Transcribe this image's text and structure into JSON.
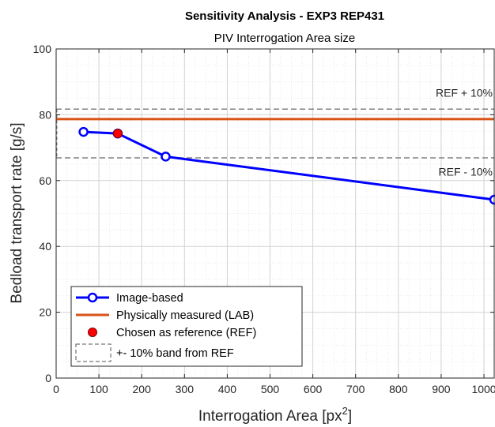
{
  "chart_data": {
    "type": "line",
    "title": "Sensitivity Analysis - EXP3 REP431",
    "subtitle": "PIV Interrogation Area size",
    "xlabel": "Interrogation Area [px",
    "xlabel_sup": "2",
    "xlabel_end": "]",
    "ylabel": "Bedload transport rate [g/s]",
    "xlim": [
      0,
      1024
    ],
    "ylim": [
      0,
      100
    ],
    "xticks": [
      0,
      100,
      200,
      300,
      400,
      500,
      600,
      700,
      800,
      900,
      1000
    ],
    "yticks": [
      0,
      20,
      40,
      60,
      80,
      100
    ],
    "grid": true,
    "legend_position": "bottom-left",
    "series": [
      {
        "name": "Image-based",
        "color": "#0000ff",
        "marker": "open-circle",
        "x": [
          64,
          144,
          256,
          1024
        ],
        "y": [
          74.8,
          74.3,
          67.3,
          54.2
        ]
      }
    ],
    "reference_lines": [
      {
        "name": "Physically measured (LAB)",
        "y": 78.7,
        "color": "#d95319",
        "style": "solid"
      },
      {
        "name": "+- 10% band from REF",
        "y_values": [
          81.7,
          66.9
        ],
        "color": "#808080",
        "style": "dashed"
      }
    ],
    "reference_point": {
      "name": "Chosen as reference (REF)",
      "x": 144,
      "y": 74.3,
      "color": "#ff0000"
    },
    "annotations": [
      {
        "text": "REF + 10%",
        "x": 1000,
        "y": 85.5
      },
      {
        "text": "REF - 10%",
        "x": 1000,
        "y": 61.5
      }
    ],
    "legend": [
      {
        "label": "Image-based",
        "kind": "line-marker"
      },
      {
        "label": "Physically measured (LAB)",
        "kind": "line"
      },
      {
        "label": "Chosen as reference (REF)",
        "kind": "point"
      },
      {
        "label": "+- 10% band from REF",
        "kind": "dashed-box"
      }
    ]
  }
}
